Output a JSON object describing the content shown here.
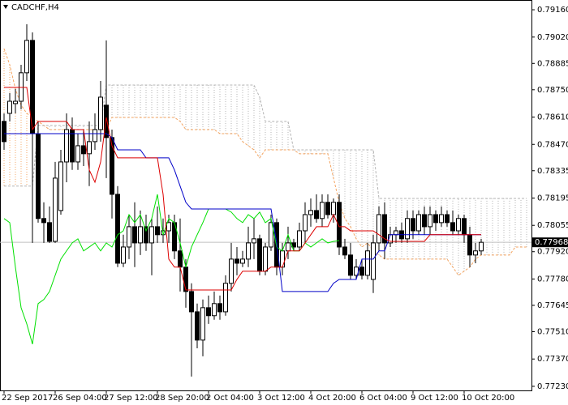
{
  "chart_data": {
    "type": "candlestick",
    "title": "CADCHF,H4",
    "categories": [
      "22 Sep 2017",
      null,
      null,
      null,
      null,
      null,
      null,
      null,
      null,
      "26 Sep 04:00",
      null,
      null,
      null,
      null,
      null,
      null,
      null,
      null,
      "27 Sep 12:00",
      null,
      null,
      null,
      null,
      null,
      null,
      null,
      null,
      "28 Sep 20:00",
      null,
      null,
      null,
      null,
      null,
      null,
      null,
      null,
      "2 Oct 04:00",
      null,
      null,
      null,
      null,
      null,
      null,
      null,
      null,
      "3 Oct 12:00",
      null,
      null,
      null,
      null,
      null,
      null,
      null,
      null,
      "4 Oct 20:00",
      null,
      null,
      null,
      null,
      null,
      null,
      null,
      null,
      "6 Oct 04:00",
      null,
      null,
      null,
      null,
      null,
      null,
      null,
      null,
      "9 Oct 12:00",
      null,
      null,
      null,
      null,
      null,
      null,
      null,
      null,
      "10 Oct 20:00",
      null,
      null,
      null,
      null,
      null,
      null,
      null,
      null,
      null,
      null,
      null
    ],
    "candles": [
      [
        0.78588,
        0.78629,
        0.78442,
        0.78484
      ],
      [
        0.78629,
        0.78733,
        0.78588,
        0.78691
      ],
      [
        0.78679,
        0.78754,
        0.78629,
        0.78691
      ],
      [
        0.78691,
        0.78878,
        0.7865,
        0.78837
      ],
      [
        0.78837,
        0.79086,
        0.78795,
        0.79003
      ],
      [
        0.79003,
        0.79044,
        0.77965,
        0.78525
      ],
      [
        0.78525,
        0.78588,
        0.78069,
        0.7809
      ],
      [
        0.7809,
        0.78173,
        0.77965,
        0.78069
      ],
      [
        0.78069,
        0.78152,
        0.77965,
        0.77973
      ],
      [
        0.77973,
        0.7838,
        0.77965,
        0.78297
      ],
      [
        0.78131,
        0.78442,
        0.7811,
        0.7838
      ],
      [
        0.7838,
        0.78629,
        0.78276,
        0.78546
      ],
      [
        0.78546,
        0.78608,
        0.78339,
        0.7838
      ],
      [
        0.7838,
        0.78525,
        0.78339,
        0.78463
      ],
      [
        0.78463,
        0.78546,
        0.78359,
        0.78422
      ],
      [
        0.78422,
        0.78588,
        0.78256,
        0.78484
      ],
      [
        0.78484,
        0.78629,
        0.78442,
        0.78546
      ],
      [
        0.78546,
        0.78795,
        0.78484,
        0.78712
      ],
      [
        0.78671,
        0.79003,
        0.78297,
        0.78505
      ],
      [
        0.78505,
        0.78546,
        0.7809,
        0.78214
      ],
      [
        0.78214,
        0.78256,
        0.77841,
        0.77861
      ],
      [
        0.77861,
        0.78007,
        0.77841,
        0.77944
      ],
      [
        0.77944,
        0.7811,
        0.77882,
        0.78048
      ],
      [
        0.78048,
        0.78173,
        0.77841,
        0.77965
      ],
      [
        0.77965,
        0.78131,
        0.77903,
        0.78048
      ],
      [
        0.78048,
        0.7811,
        0.77924,
        0.77965
      ],
      [
        0.77965,
        0.7809,
        0.77799,
        0.78048
      ],
      [
        0.78048,
        0.78152,
        0.77965,
        0.78007
      ],
      [
        0.78007,
        0.7809,
        0.77965,
        0.78027
      ],
      [
        0.78027,
        0.7811,
        0.77965,
        0.78069
      ],
      [
        0.78069,
        0.7811,
        0.77882,
        0.77924
      ],
      [
        0.77924,
        0.7809,
        0.77716,
        0.77841
      ],
      [
        0.77841,
        0.77882,
        0.77633,
        0.77716
      ],
      [
        0.77716,
        0.77758,
        0.7728,
        0.77612
      ],
      [
        0.77612,
        0.77654,
        0.77425,
        0.77467
      ],
      [
        0.77467,
        0.77675,
        0.77384,
        0.77633
      ],
      [
        0.77633,
        0.77695,
        0.7755,
        0.77592
      ],
      [
        0.77592,
        0.77716,
        0.77571,
        0.77654
      ],
      [
        0.77654,
        0.77695,
        0.77571,
        0.77612
      ],
      [
        0.77612,
        0.77799,
        0.77592,
        0.77758
      ],
      [
        0.77758,
        0.77965,
        0.77716,
        0.77882
      ],
      [
        0.77882,
        0.77944,
        0.77799,
        0.77861
      ],
      [
        0.77861,
        0.77924,
        0.77841,
        0.77882
      ],
      [
        0.77882,
        0.78048,
        0.77841,
        0.77965
      ],
      [
        0.77965,
        0.7809,
        0.77882,
        0.77986
      ],
      [
        0.77986,
        0.78007,
        0.77799,
        0.7782
      ],
      [
        0.7782,
        0.77965,
        0.77799,
        0.77944
      ],
      [
        0.77944,
        0.7811,
        0.77924,
        0.78069
      ],
      [
        0.78069,
        0.7809,
        0.77799,
        0.77841
      ],
      [
        0.77841,
        0.77965,
        0.77799,
        0.77924
      ],
      [
        0.77924,
        0.78048,
        0.77882,
        0.77965
      ],
      [
        0.77965,
        0.77986,
        0.77924,
        0.77944
      ],
      [
        0.77944,
        0.78069,
        0.77924,
        0.78027
      ],
      [
        0.78027,
        0.78173,
        0.77965,
        0.7811
      ],
      [
        0.7811,
        0.78193,
        0.78048,
        0.78131
      ],
      [
        0.78131,
        0.78214,
        0.78069,
        0.7809
      ],
      [
        0.7809,
        0.78214,
        0.78048,
        0.78173
      ],
      [
        0.78173,
        0.78214,
        0.7809,
        0.7811
      ],
      [
        0.7811,
        0.78193,
        0.78069,
        0.78173
      ],
      [
        0.78173,
        0.78214,
        0.77903,
        0.77944
      ],
      [
        0.77944,
        0.77986,
        0.77882,
        0.77903
      ],
      [
        0.77903,
        0.77965,
        0.77778,
        0.77799
      ],
      [
        0.77799,
        0.77882,
        0.77778,
        0.77841
      ],
      [
        0.77841,
        0.77882,
        0.77778,
        0.77799
      ],
      [
        0.77799,
        0.77965,
        0.77778,
        0.77924
      ],
      [
        0.77778,
        0.78007,
        0.77708,
        0.77965
      ],
      [
        0.77965,
        0.78152,
        0.77924,
        0.7811
      ],
      [
        0.7811,
        0.78173,
        0.77882,
        0.77965
      ],
      [
        0.77965,
        0.78048,
        0.77944,
        0.78007
      ],
      [
        0.78007,
        0.78048,
        0.77965,
        0.78027
      ],
      [
        0.78027,
        0.78069,
        0.77965,
        0.77986
      ],
      [
        0.77986,
        0.78131,
        0.77965,
        0.7809
      ],
      [
        0.7809,
        0.78131,
        0.77986,
        0.78027
      ],
      [
        0.78027,
        0.78131,
        0.78007,
        0.7811
      ],
      [
        0.7811,
        0.78152,
        0.78007,
        0.78048
      ],
      [
        0.78048,
        0.78152,
        0.78007,
        0.7811
      ],
      [
        0.7811,
        0.78131,
        0.78027,
        0.78069
      ],
      [
        0.78069,
        0.78152,
        0.78048,
        0.7811
      ],
      [
        0.7811,
        0.78131,
        0.78048,
        0.78069
      ],
      [
        0.78069,
        0.78131,
        0.78007,
        0.78027
      ],
      [
        0.78027,
        0.7811,
        0.78007,
        0.7809
      ],
      [
        0.7809,
        0.7811,
        0.77965,
        0.78007
      ],
      [
        0.78007,
        0.78048,
        0.77841,
        0.77903
      ],
      [
        0.77903,
        0.77965,
        0.77861,
        0.77924
      ],
      [
        0.77924,
        0.77986,
        0.77903,
        0.77968
      ],
      null,
      null,
      null,
      null,
      null,
      null,
      null,
      null
    ],
    "ylim": [
      0.77209,
      0.7921
    ],
    "yticks": [
      {
        "value": 0.7916,
        "label": "0.79160"
      },
      {
        "value": 0.7902,
        "label": "0.79020"
      },
      {
        "value": 0.78885,
        "label": "0.78885"
      },
      {
        "value": 0.7875,
        "label": "0.78750"
      },
      {
        "value": 0.7861,
        "label": "0.78610"
      },
      {
        "value": 0.7847,
        "label": "0.78470"
      },
      {
        "value": 0.78335,
        "label": "0.78335"
      },
      {
        "value": 0.78195,
        "label": "0.78195"
      },
      {
        "value": 0.78055,
        "label": "0.78055"
      },
      {
        "value": 0.7792,
        "label": "0.77920"
      },
      {
        "value": 0.7778,
        "label": "0.77780"
      },
      {
        "value": 0.77645,
        "label": "0.77645"
      },
      {
        "value": 0.7751,
        "label": "0.77510"
      },
      {
        "value": 0.7737,
        "label": "0.77370"
      },
      {
        "value": 0.7723,
        "label": "0.77230"
      }
    ],
    "last_price": 0.77968,
    "grid": false,
    "series": [
      {
        "color": "#f4a460",
        "dashed": true,
        "cloud": true,
        "values": [
          0.78961,
          0.78878,
          0.78754,
          0.78671,
          0.78629,
          0.78608,
          0.78588,
          0.78567,
          0.78546,
          0.78546,
          0.78546,
          0.78546,
          0.78546,
          0.78546,
          0.78546,
          0.78546,
          0.78546,
          0.78546,
          0.78546,
          0.78608,
          0.78608,
          0.78608,
          0.78608,
          0.78608,
          0.78608,
          0.78608,
          0.78608,
          0.78608,
          0.78608,
          0.78608,
          0.78608,
          0.78588,
          0.78546,
          0.78546,
          0.78546,
          0.78546,
          0.78546,
          0.78546,
          0.78525,
          0.78525,
          0.78525,
          0.78525,
          0.78484,
          0.78463,
          0.78442,
          0.78401,
          0.78442,
          0.78442,
          0.78442,
          0.78442,
          0.78442,
          0.78442,
          0.78422,
          0.78422,
          0.78422,
          0.78422,
          0.78422,
          0.78422,
          0.78297,
          0.78173,
          0.7809,
          0.78048,
          0.77986,
          0.77944,
          0.77965,
          0.77924,
          0.77903,
          0.77882,
          0.77882,
          0.77882,
          0.77882,
          0.77882,
          0.77882,
          0.77882,
          0.77882,
          0.77882,
          0.77882,
          0.77882,
          0.77882,
          0.77841,
          0.77799,
          0.7782,
          0.77841,
          0.77882,
          0.77903,
          0.77903,
          0.77903,
          0.77903,
          0.77903,
          0.77903,
          0.77944,
          0.77944,
          0.77944
        ]
      },
      {
        "color": "#b4b4b4",
        "dashed": true,
        "cloud": true,
        "values": [
          0.78256,
          0.78256,
          0.78256,
          0.78256,
          0.78256,
          0.78256,
          0.78567,
          0.78567,
          0.78567,
          0.78567,
          0.78567,
          0.78567,
          0.78567,
          0.78567,
          0.78567,
          0.78567,
          0.78567,
          0.78567,
          0.78774,
          0.78774,
          0.78774,
          0.78774,
          0.78774,
          0.78774,
          0.78774,
          0.78774,
          0.78774,
          0.78774,
          0.78774,
          0.78774,
          0.78774,
          0.78774,
          0.78774,
          0.78774,
          0.78774,
          0.78774,
          0.78774,
          0.78774,
          0.78774,
          0.78774,
          0.78774,
          0.78774,
          0.78774,
          0.78774,
          0.78774,
          0.78712,
          0.78588,
          0.78588,
          0.78588,
          0.78588,
          0.78588,
          0.78442,
          0.78442,
          0.78442,
          0.78442,
          0.78442,
          0.78442,
          0.78442,
          0.78442,
          0.78442,
          0.78442,
          0.78442,
          0.78442,
          0.78442,
          0.78442,
          0.78442,
          0.78193,
          0.78193,
          0.78193,
          0.78193,
          0.78193,
          0.78193,
          0.78193,
          0.78193,
          0.78193,
          0.78193,
          0.78193,
          0.78193,
          0.78193,
          0.78193,
          0.78193,
          0.78193,
          0.78193,
          0.78193,
          0.78193,
          0.78193,
          0.78193,
          0.78193,
          0.78193,
          0.78193,
          0.78193,
          0.78193,
          0.78193
        ]
      },
      {
        "color": "#00e000",
        "values": [
          0.7809,
          0.78069,
          0.77841,
          0.77633,
          0.7755,
          0.77446,
          0.77654,
          0.77675,
          0.77716,
          0.77799,
          0.77882,
          0.77924,
          0.77965,
          0.77986,
          0.77924,
          0.77944,
          0.77965,
          0.77924,
          0.77965,
          0.77944,
          0.78007,
          0.78027,
          0.7811,
          0.78069,
          0.7811,
          0.78027,
          0.7809,
          0.78214,
          0.78007,
          0.7809,
          0.78069,
          0.77965,
          0.77841,
          0.77944,
          0.78007,
          0.78069,
          0.78139,
          0.78139,
          0.78139,
          0.78139,
          0.78123,
          0.7809,
          0.78069,
          0.7811,
          0.7809,
          0.78123,
          0.78069,
          0.7809,
          0.77944,
          0.77924,
          0.78007,
          0.77924,
          0.77924,
          0.77965,
          0.77944,
          0.77965,
          0.77986,
          0.77965,
          0.77973,
          0.77977,
          null,
          null,
          null,
          null,
          null,
          null,
          null,
          null,
          null,
          null,
          null,
          null,
          null,
          null,
          null,
          null,
          null,
          null,
          null,
          null,
          null,
          null,
          null,
          null,
          null,
          null,
          null,
          null,
          null,
          null,
          null,
          null,
          null
        ]
      },
      {
        "color": "#0000c8",
        "values": [
          0.78525,
          0.78525,
          0.78525,
          0.78525,
          0.78525,
          0.78525,
          0.78525,
          0.78525,
          0.78525,
          0.78525,
          0.78525,
          0.78525,
          0.78525,
          0.78525,
          0.78525,
          0.78525,
          0.78525,
          0.78525,
          0.78525,
          0.78505,
          0.78442,
          0.78442,
          0.78442,
          0.78442,
          0.78442,
          0.78401,
          0.78401,
          0.78401,
          0.78401,
          0.78401,
          0.78339,
          0.78256,
          0.78173,
          0.78139,
          0.78139,
          0.78139,
          0.78139,
          0.78139,
          0.78139,
          0.78139,
          0.78139,
          0.78139,
          0.78139,
          0.78139,
          0.78139,
          0.78139,
          0.78139,
          0.78139,
          0.77965,
          0.77716,
          0.77716,
          0.77716,
          0.77716,
          0.77716,
          0.77716,
          0.77716,
          0.77716,
          0.77716,
          0.77758,
          0.77778,
          0.77778,
          0.77778,
          0.77778,
          0.77882,
          0.77882,
          0.77882,
          0.77924,
          0.77924,
          0.78007,
          0.78007,
          0.78007,
          0.78007,
          0.78007,
          0.78007,
          0.78007,
          0.78007,
          0.78007,
          0.78007,
          0.78007,
          0.78007,
          0.78007,
          0.78007,
          0.78007,
          0.78007,
          0.78007,
          null,
          null,
          null,
          null,
          null,
          null,
          null,
          null
        ]
      },
      {
        "color": "#dd0000",
        "values": [
          0.78762,
          0.78762,
          0.78762,
          0.78762,
          0.78762,
          0.78546,
          0.78588,
          0.78588,
          0.78588,
          0.78588,
          0.78588,
          0.78588,
          0.78546,
          0.78546,
          0.78546,
          0.78339,
          0.78276,
          0.7838,
          0.78608,
          0.78463,
          0.78401,
          0.78401,
          0.78401,
          0.78401,
          0.78401,
          0.78401,
          0.78401,
          0.78401,
          0.78214,
          0.77882,
          0.77841,
          0.77841,
          0.77724,
          0.77724,
          0.77724,
          0.77724,
          0.77724,
          0.77724,
          0.77724,
          0.77724,
          0.77724,
          0.77778,
          0.7782,
          0.7782,
          0.7782,
          0.7782,
          0.7782,
          0.77841,
          0.77841,
          0.77841,
          0.77924,
          0.77924,
          0.77924,
          0.77965,
          0.78007,
          0.78048,
          0.78048,
          0.78048,
          0.7811,
          0.78048,
          0.78048,
          0.78027,
          0.78027,
          0.78027,
          0.78027,
          0.78027,
          0.78007,
          0.77986,
          0.77973,
          0.77973,
          0.77973,
          0.77973,
          0.77973,
          0.77973,
          0.77973,
          0.78007,
          0.78007,
          0.78007,
          0.78007,
          0.78007,
          0.78007,
          0.78007,
          0.78007,
          0.78007,
          0.78007,
          null,
          null,
          null,
          null,
          null,
          null,
          null,
          null
        ]
      }
    ]
  }
}
